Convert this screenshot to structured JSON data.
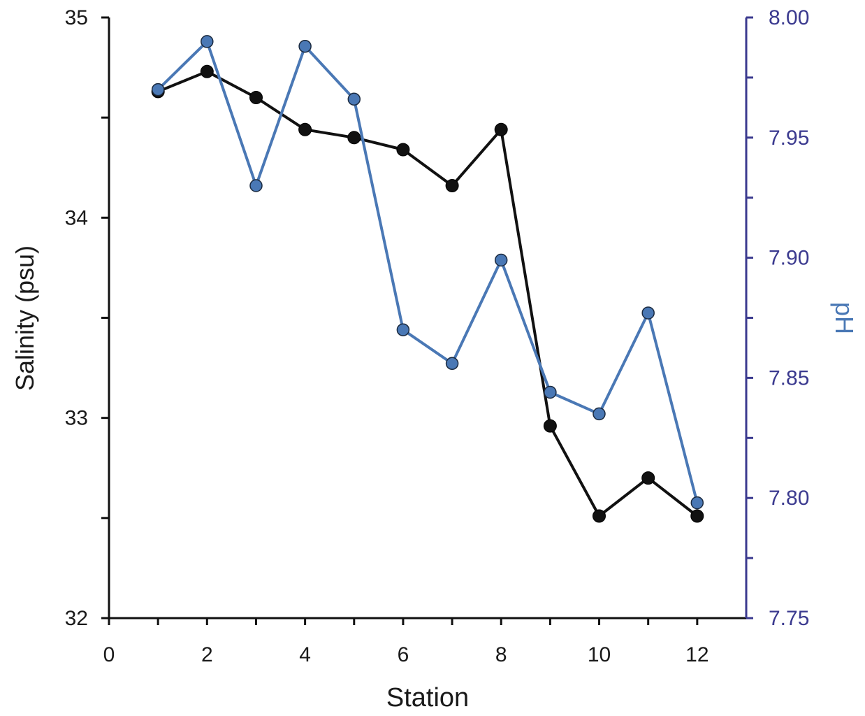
{
  "chart_data": {
    "type": "line",
    "xlabel": "Station",
    "ylabel": "Salinity (psu)",
    "y2label": "pH",
    "xlim": [
      0,
      13
    ],
    "xticks": [
      0,
      2,
      4,
      6,
      8,
      10,
      12
    ],
    "ylim": [
      32,
      35
    ],
    "yticks": [
      32,
      33,
      34,
      35
    ],
    "y2lim": [
      7.75,
      8.0
    ],
    "y2ticks": [
      7.75,
      7.8,
      7.85,
      7.9,
      7.95,
      8.0
    ],
    "y2tick_labels": [
      "7.75",
      "7.80",
      "7.85",
      "7.90",
      "7.95",
      "8.00"
    ],
    "grid": false,
    "legend": "none",
    "series": [
      {
        "axis": "left",
        "color": "#111111",
        "marker_fill": "#111111",
        "x": [
          1,
          2,
          3,
          4,
          5,
          6,
          7,
          8,
          9,
          10,
          11,
          12
        ],
        "values": [
          34.63,
          34.73,
          34.6,
          34.44,
          34.4,
          34.34,
          34.16,
          34.44,
          32.96,
          32.51,
          32.7,
          32.51
        ]
      },
      {
        "axis": "right",
        "color": "#4a78b5",
        "marker_fill": "#4a78b5",
        "x": [
          1,
          2,
          3,
          4,
          5,
          6,
          7,
          8,
          9,
          10,
          11,
          12
        ],
        "values": [
          7.97,
          7.99,
          7.93,
          7.988,
          7.966,
          7.87,
          7.856,
          7.899,
          7.844,
          7.835,
          7.877,
          7.798
        ]
      }
    ],
    "colors": {
      "left_axis": "#111111",
      "right_axis": "#3b3a8f",
      "ph_label": "#4a78b5"
    }
  }
}
